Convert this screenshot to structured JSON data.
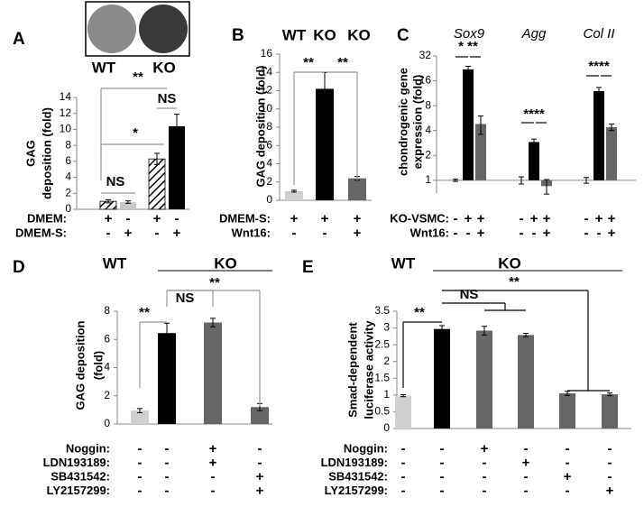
{
  "chart_data": [
    {
      "type": "bar",
      "panel": "A",
      "headers": [
        "WT",
        "KO"
      ],
      "ylabel": [
        "GAG",
        "deposition (fold)"
      ],
      "values": [
        1.0,
        0.9,
        6.3,
        10.4
      ],
      "errors": [
        0.2,
        0.15,
        0.7,
        1.5
      ],
      "colors": [
        "#c8c8c8",
        "#c8c8c8",
        "#333333",
        "#000000"
      ],
      "hatched": [
        true,
        false,
        true,
        false
      ],
      "ylim": [
        0,
        14
      ],
      "yticks": [
        0,
        2,
        4,
        6,
        8,
        10,
        12,
        14
      ],
      "rows": [
        {
          "label": "DMEM:",
          "marks": [
            "+",
            "-",
            "+",
            "-"
          ]
        },
        {
          "label": "DMEM-S:",
          "marks": [
            "-",
            "+",
            "-",
            "+"
          ]
        }
      ],
      "annotations": [
        "NS",
        "*",
        "**",
        "NS"
      ]
    },
    {
      "type": "bar",
      "panel": "B",
      "headers": [
        "WT",
        "KO",
        "KO"
      ],
      "ylabel": [
        "GAG deposition (fold)"
      ],
      "values": [
        1.0,
        12.2,
        2.4
      ],
      "errors": [
        0.1,
        1.8,
        0.2
      ],
      "colors": [
        "#d0d0d0",
        "#000000",
        "#666666"
      ],
      "ylim": [
        0,
        16
      ],
      "yticks": [
        0,
        2,
        4,
        6,
        8,
        10,
        12,
        14,
        16
      ],
      "rows": [
        {
          "label": "DMEM-S:",
          "marks": [
            "+",
            "+",
            "+"
          ]
        },
        {
          "label": "Wnt16:",
          "marks": [
            "-",
            "-",
            "+"
          ]
        }
      ],
      "annotations": [
        "**",
        "**"
      ]
    },
    {
      "type": "bar",
      "panel": "C",
      "groups": [
        "Sox9",
        "Agg",
        "Col II"
      ],
      "ylabel": [
        "chondrogenic gene",
        "expression (fold)"
      ],
      "log_scale": true,
      "values": [
        1.0,
        22,
        4.8,
        1.0,
        2.9,
        0.85,
        1.0,
        12,
        4.4
      ],
      "errors": [
        0.03,
        2,
        1.2,
        0.1,
        0.25,
        0.17,
        0.08,
        1.3,
        0.4
      ],
      "colors": [
        "#d0d0d0",
        "#000000",
        "#666666",
        "#d0d0d0",
        "#000000",
        "#666666",
        "#d0d0d0",
        "#000000",
        "#666666"
      ],
      "ylim": [
        0.7,
        32
      ],
      "yticks": [
        1,
        2,
        4,
        8,
        16,
        32
      ],
      "rows": [
        {
          "label": "KO-VSMC:",
          "marks": [
            "-",
            "+",
            "+",
            "-",
            "+",
            "+",
            "-",
            "+",
            "+"
          ]
        },
        {
          "label": "Wnt16:",
          "marks": [
            "-",
            "-",
            "+",
            "-",
            "-",
            "+",
            "-",
            "-",
            "+"
          ]
        }
      ],
      "annotations": [
        "* **",
        "****",
        "****"
      ]
    },
    {
      "type": "bar",
      "panel": "D",
      "headers": [
        "WT",
        "KO"
      ],
      "ylabel": [
        "GAG deposition",
        "(fold)"
      ],
      "values": [
        0.95,
        6.45,
        7.2,
        1.2
      ],
      "errors": [
        0.15,
        0.7,
        0.3,
        0.25
      ],
      "colors": [
        "#d0d0d0",
        "#000000",
        "#666666",
        "#666666"
      ],
      "ylim": [
        0,
        8
      ],
      "yticks": [
        0,
        2,
        4,
        6,
        8
      ],
      "rows": [
        {
          "label": "Noggin:",
          "marks": [
            "-",
            "-",
            "+",
            "-"
          ]
        },
        {
          "label": "LDN193189:",
          "marks": [
            "-",
            "-",
            "+",
            "-"
          ]
        },
        {
          "label": "SB431542:",
          "marks": [
            "-",
            "-",
            "-",
            "+"
          ]
        },
        {
          "label": "LY2157299:",
          "marks": [
            "-",
            "-",
            "-",
            "+"
          ]
        }
      ],
      "annotations": [
        "**",
        "NS",
        "**"
      ]
    },
    {
      "type": "bar",
      "panel": "E",
      "headers": [
        "WT",
        "KO"
      ],
      "ylabel": [
        "Smad-dependent",
        "luciferase activity"
      ],
      "values": [
        0.98,
        2.97,
        2.92,
        2.79,
        1.05,
        1.02
      ],
      "errors": [
        0.03,
        0.1,
        0.13,
        0.05,
        0.06,
        0.04
      ],
      "colors": [
        "#d0d0d0",
        "#000000",
        "#666666",
        "#666666",
        "#666666",
        "#666666"
      ],
      "ylim": [
        0,
        3.5
      ],
      "yticks": [
        0,
        0.5,
        1,
        1.5,
        2,
        2.5,
        3,
        3.5
      ],
      "rows": [
        {
          "label": "Noggin:",
          "marks": [
            "-",
            "-",
            "+",
            "-",
            "-",
            "-"
          ]
        },
        {
          "label": "LDN193189:",
          "marks": [
            "-",
            "-",
            "-",
            "+",
            "-",
            "-"
          ]
        },
        {
          "label": "SB431542:",
          "marks": [
            "-",
            "-",
            "-",
            "-",
            "+",
            "-"
          ]
        },
        {
          "label": "LY2157299:",
          "marks": [
            "-",
            "-",
            "-",
            "-",
            "-",
            "+"
          ]
        }
      ],
      "annotations": [
        "**",
        "NS",
        "**"
      ]
    }
  ]
}
